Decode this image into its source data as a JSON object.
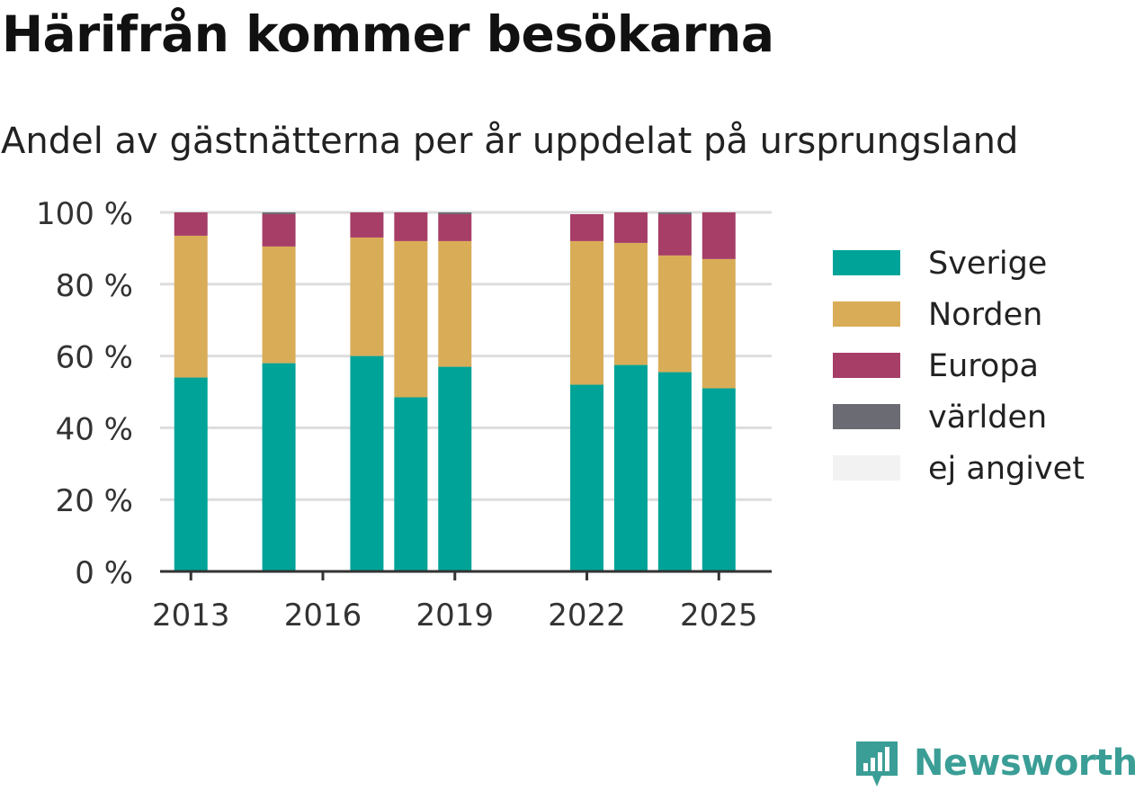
{
  "title": "Härifrån kommer besökarna",
  "subtitle": "Andel av gästnätterna per år uppdelat på ursprungsland",
  "brand": {
    "name": "Newsworthy",
    "icon": "newsworthy-logo-icon",
    "color": "#3a9e96"
  },
  "chart_data": {
    "type": "bar",
    "stacked": true,
    "x": [
      2013,
      2015,
      2017,
      2018,
      2019,
      2022,
      2023,
      2024,
      2025
    ],
    "x_ticks": [
      "2013",
      "2016",
      "2019",
      "2022",
      "2025"
    ],
    "xlim": [
      2012.3,
      2026.2
    ],
    "ylim": [
      0,
      100
    ],
    "y_ticks": [
      "0 %",
      "20 %",
      "40 %",
      "60 %",
      "80 %",
      "100 %"
    ],
    "y_tick_values": [
      0,
      20,
      40,
      60,
      80,
      100
    ],
    "grid": true,
    "legend_position": "right",
    "series": [
      {
        "name": "Sverige",
        "color": "#00a398",
        "values": [
          54,
          58,
          60,
          48.5,
          57,
          52,
          57.5,
          55.5,
          51
        ]
      },
      {
        "name": "Norden",
        "color": "#d9ac57",
        "values": [
          39.5,
          32.5,
          33,
          43.5,
          35,
          40,
          34,
          32.5,
          36
        ]
      },
      {
        "name": "Europa",
        "color": "#a63e67",
        "values": [
          6.5,
          9,
          7,
          8,
          7.5,
          7.5,
          8.5,
          11.5,
          13
        ]
      },
      {
        "name": "världen",
        "color": "#6b6b73",
        "values": [
          0,
          0.5,
          0,
          0,
          0.5,
          0,
          0,
          0.5,
          0
        ]
      },
      {
        "name": "ej angivet",
        "color": "#f2f2f2",
        "values": [
          0,
          0,
          0,
          0,
          0,
          0,
          0,
          0,
          0
        ]
      }
    ]
  }
}
